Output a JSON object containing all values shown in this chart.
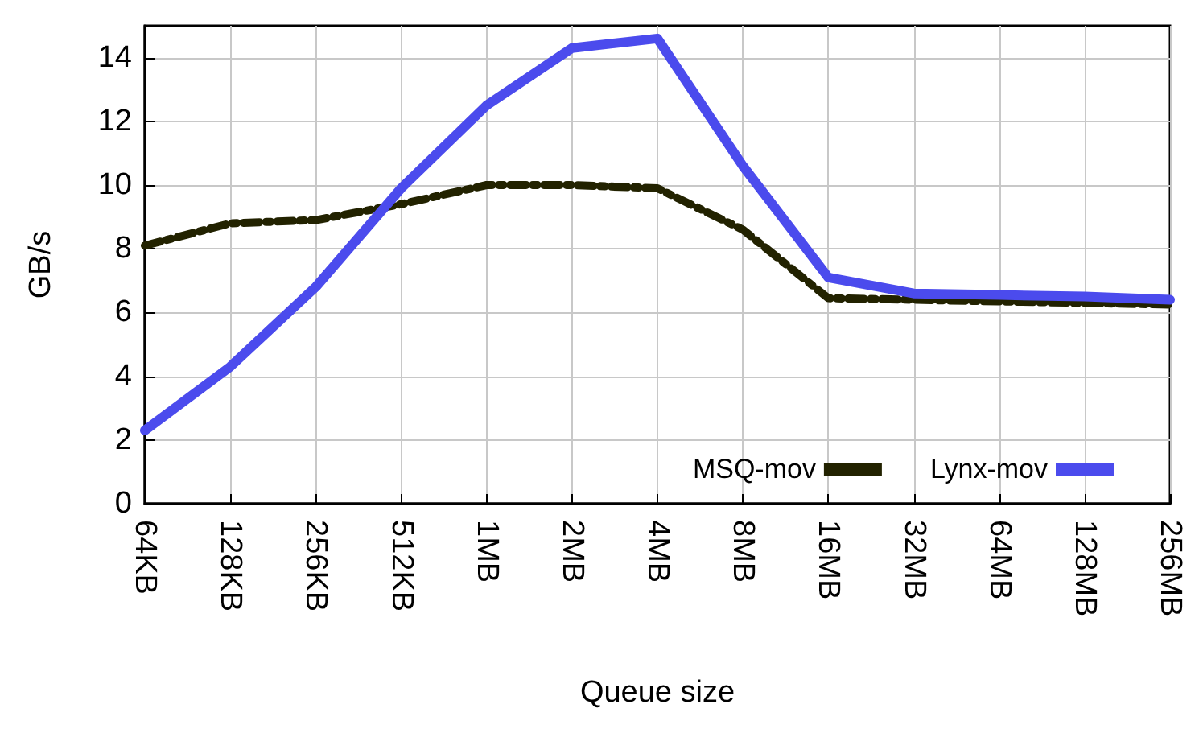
{
  "chart_data": {
    "type": "line",
    "xlabel": "Queue size",
    "ylabel": "GB/s",
    "categories": [
      "64KB",
      "128KB",
      "256KB",
      "512KB",
      "1MB",
      "2MB",
      "4MB",
      "8MB",
      "16MB",
      "32MB",
      "64MB",
      "128MB",
      "256MB"
    ],
    "series": [
      {
        "name": "MSQ-mov",
        "color": "#222200",
        "line_style": "dashed",
        "values": [
          8.1,
          8.8,
          8.9,
          9.4,
          10.0,
          10.0,
          9.9,
          8.6,
          6.45,
          6.4,
          6.35,
          6.3,
          6.25
        ]
      },
      {
        "name": "Lynx-mov",
        "color": "#4b4bed",
        "line_style": "solid",
        "values": [
          2.3,
          4.3,
          6.8,
          9.9,
          12.5,
          14.3,
          14.6,
          10.6,
          7.1,
          6.6,
          6.55,
          6.5,
          6.4
        ]
      }
    ],
    "ylim": [
      0,
      15
    ],
    "yticks": [
      0,
      2,
      4,
      6,
      8,
      10,
      12,
      14
    ],
    "grid": true,
    "legend": "bottom right",
    "marker": "none"
  }
}
